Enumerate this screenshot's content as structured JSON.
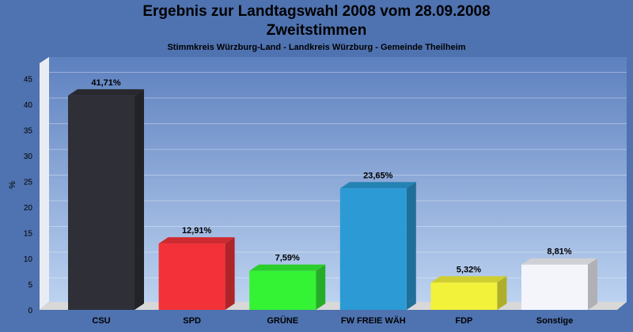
{
  "chart_data": {
    "type": "bar",
    "title": "Ergebnis zur Landtagswahl 2008 vom 28.09.2008",
    "title2": "Zweitstimmen",
    "subtitle": "Stimmkreis Würzburg-Land - Landkreis Würzburg - Gemeinde Theilheim",
    "ylabel": "%",
    "ylim": [
      0,
      45
    ],
    "yticks": [
      "0",
      "5",
      "10",
      "15",
      "20",
      "25",
      "30",
      "35",
      "40",
      "45"
    ],
    "grid": true,
    "categories": [
      "CSU",
      "SPD",
      "GRÜNE",
      "FW FREIE WÄH",
      "FDP",
      "Sonstige"
    ],
    "values": [
      41.71,
      12.91,
      7.59,
      23.65,
      5.32,
      8.81
    ],
    "value_labels": [
      "41,71%",
      "12,91%",
      "7,59%",
      "23,65%",
      "5,32%",
      "8,81%"
    ],
    "colors": [
      "#2f3037",
      "#f23238",
      "#34f234",
      "#2c9ad4",
      "#f2f23a",
      "#f4f5fb"
    ]
  }
}
